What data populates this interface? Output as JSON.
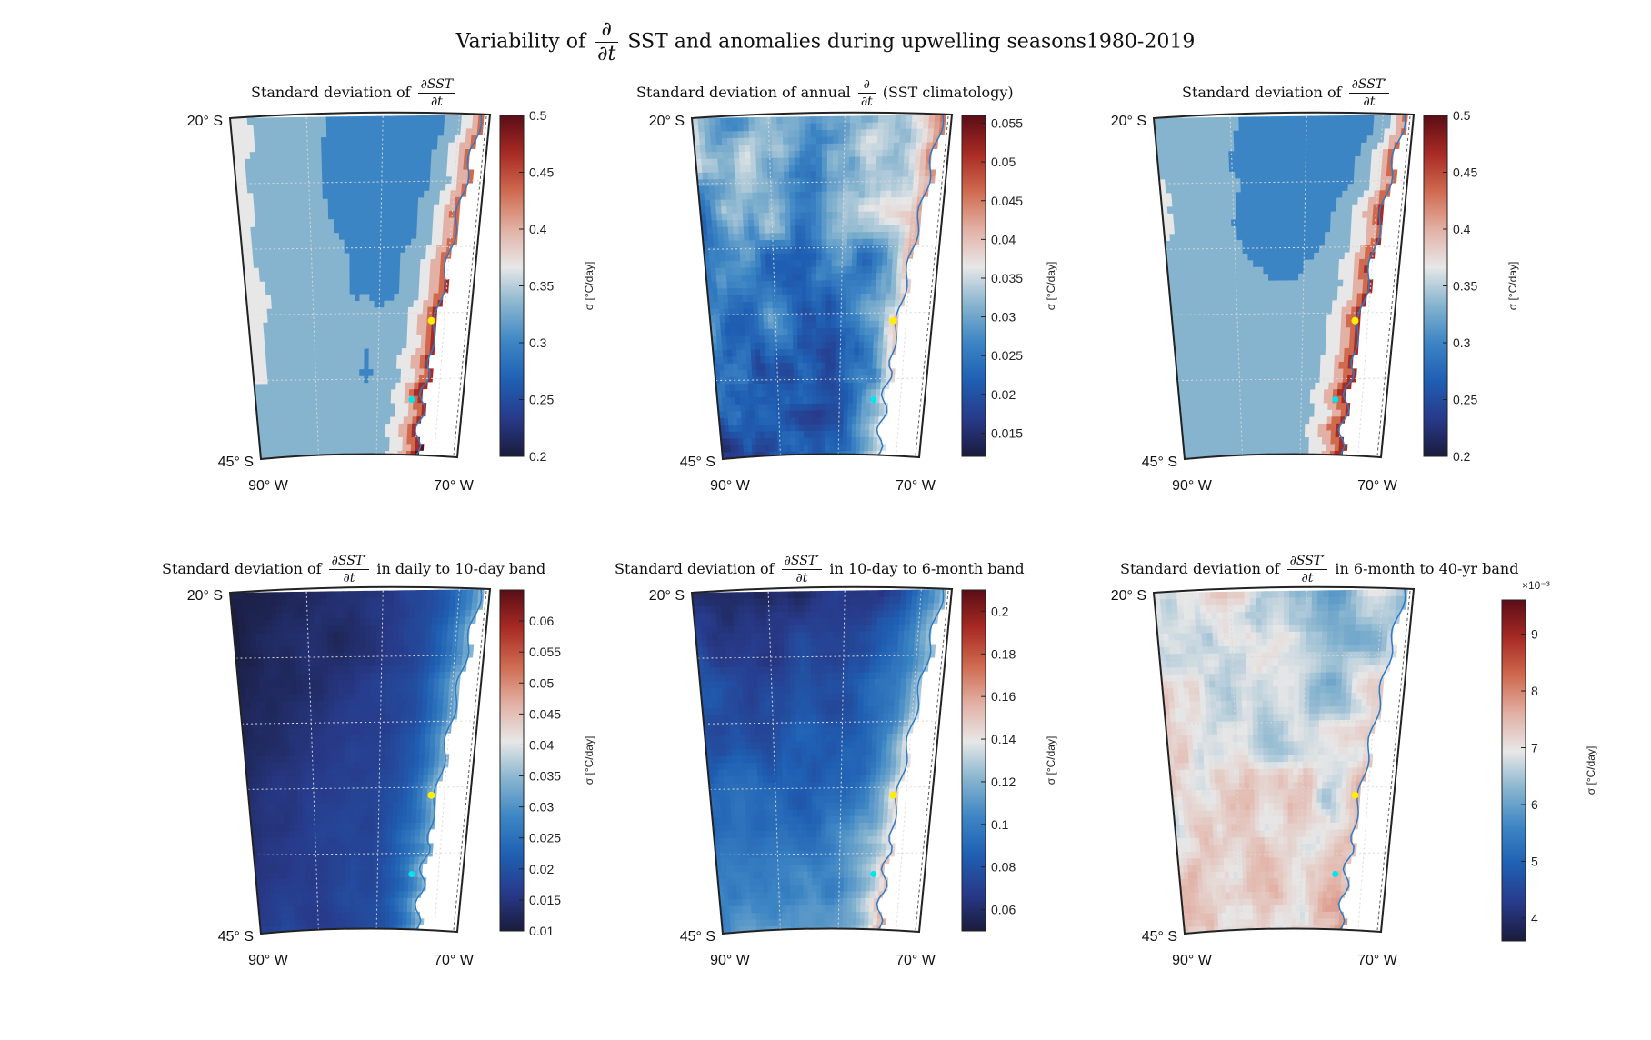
{
  "title": {
    "prefix": "Variability of",
    "frac_num": "∂",
    "frac_den": "∂t",
    "suffix": "SST and anomalies during upwelling seasons1980-2019"
  },
  "colors": {
    "cmap": [
      "#1a1c3c",
      "#283a8a",
      "#1f5fb3",
      "#3c85c4",
      "#86b4cf",
      "#e7e7e7",
      "#e2b0a4",
      "#cf6a4f",
      "#a82a24",
      "#5a0d16"
    ],
    "coast": "#2a7bc8",
    "land": "#ffffff",
    "marker_north": "#ffee00",
    "marker_south": "#00e5ee"
  },
  "chart_data": [
    {
      "type": "heatmap",
      "panel": "top-left",
      "title_prefix": "Standard deviation of",
      "title_frac_num": "∂SST",
      "title_frac_den": "∂t",
      "title_suffix": "",
      "lat_labels": [
        "20° S",
        "45° S"
      ],
      "lon_labels": [
        "90° W",
        "70° W"
      ],
      "colorbar": {
        "label": "σ [°C/day]",
        "range": [
          0.2,
          0.5
        ],
        "ticks": [
          "0.2",
          "0.25",
          "0.3",
          "0.35",
          "0.4",
          "0.45",
          "0.5"
        ],
        "multiplier": ""
      },
      "field": {
        "base": 0.31,
        "coast_value": 0.49,
        "west_gradient": 0.06,
        "south_gradient": 0.01,
        "noise": 0.015,
        "smooth": true,
        "contoured": true
      }
    },
    {
      "type": "heatmap",
      "panel": "top-middle",
      "title_prefix": "Standard deviation of annual",
      "title_frac_num": "∂",
      "title_frac_den": "∂t",
      "title_suffix": "(SST climatology)",
      "lat_labels": [
        "20° S",
        "45° S"
      ],
      "lon_labels": [
        "90° W",
        "70° W"
      ],
      "colorbar": {
        "label": "σ [°C/day]",
        "range": [
          0.012,
          0.056
        ],
        "ticks": [
          "0.015",
          "0.02",
          "0.025",
          "0.03",
          "0.035",
          "0.04",
          "0.045",
          "0.05",
          "0.055"
        ],
        "multiplier": ""
      },
      "field": {
        "base": 0.026,
        "coast_value": 0.038,
        "west_gradient": 0.0,
        "south_gradient": -0.006,
        "noise": 0.006,
        "smooth": false,
        "contoured": false
      }
    },
    {
      "type": "heatmap",
      "panel": "top-right",
      "title_prefix": "Standard deviation of",
      "title_frac_num": "∂SST′",
      "title_frac_den": "∂t",
      "title_suffix": "",
      "lat_labels": [
        "20° S",
        "45° S"
      ],
      "lon_labels": [
        "90° W",
        "70° W"
      ],
      "colorbar": {
        "label": "σ [°C/day]",
        "range": [
          0.2,
          0.5
        ],
        "ticks": [
          "0.2",
          "0.25",
          "0.3",
          "0.35",
          "0.4",
          "0.45",
          "0.5"
        ],
        "multiplier": ""
      },
      "field": {
        "base": 0.31,
        "coast_value": 0.49,
        "west_gradient": 0.06,
        "south_gradient": 0.01,
        "noise": 0.015,
        "smooth": true,
        "contoured": true
      }
    },
    {
      "type": "heatmap",
      "panel": "bottom-left",
      "title_prefix": "Standard deviation of",
      "title_frac_num": "∂SST′",
      "title_frac_den": "∂t",
      "title_suffix": "in daily to 10-day band",
      "lat_labels": [
        "20° S",
        "45° S"
      ],
      "lon_labels": [
        "90° W",
        "70° W"
      ],
      "colorbar": {
        "label": "σ [°C/day]",
        "range": [
          0.01,
          0.065
        ],
        "ticks": [
          "0.01",
          "0.015",
          "0.02",
          "0.025",
          "0.03",
          "0.035",
          "0.04",
          "0.045",
          "0.05",
          "0.055",
          "0.06"
        ],
        "multiplier": ""
      },
      "field": {
        "base": 0.016,
        "coast_value": 0.032,
        "west_gradient": -0.004,
        "south_gradient": 0.002,
        "noise": 0.0015,
        "smooth": false,
        "contoured": false
      }
    },
    {
      "type": "heatmap",
      "panel": "bottom-middle",
      "title_prefix": "Standard deviation of",
      "title_frac_num": "∂SST′",
      "title_frac_den": "∂t",
      "title_suffix": "in 10-day to 6-month band",
      "lat_labels": [
        "20° S",
        "45° S"
      ],
      "lon_labels": [
        "90° W",
        "70° W"
      ],
      "colorbar": {
        "label": "σ [°C/day]",
        "range": [
          0.05,
          0.21
        ],
        "ticks": [
          "0.06",
          "0.08",
          "0.1",
          "0.12",
          "0.14",
          "0.16",
          "0.18",
          "0.2"
        ],
        "multiplier": ""
      },
      "field": {
        "base": 0.085,
        "coast_value": 0.14,
        "west_gradient": 0.0,
        "south_gradient": 0.02,
        "noise": 0.008,
        "smooth": false,
        "contoured": false
      }
    },
    {
      "type": "heatmap",
      "panel": "bottom-right",
      "title_prefix": "Standard deviation of",
      "title_frac_num": "∂SST′",
      "title_frac_den": "∂t",
      "title_suffix": "in 6-month to 40-yr band",
      "lat_labels": [
        "20° S",
        "45° S"
      ],
      "lon_labels": [
        "90° W",
        "70° W"
      ],
      "colorbar": {
        "label": "σ [°C/day]",
        "range": [
          3.6,
          9.6
        ],
        "ticks": [
          "4",
          "5",
          "6",
          "7",
          "8",
          "9"
        ],
        "multiplier": "×10⁻³"
      },
      "field": {
        "base": 6.8,
        "coast_value": 7.6,
        "west_gradient": 0.6,
        "south_gradient": 0.3,
        "noise": 0.55,
        "smooth": false,
        "contoured": false
      }
    }
  ]
}
